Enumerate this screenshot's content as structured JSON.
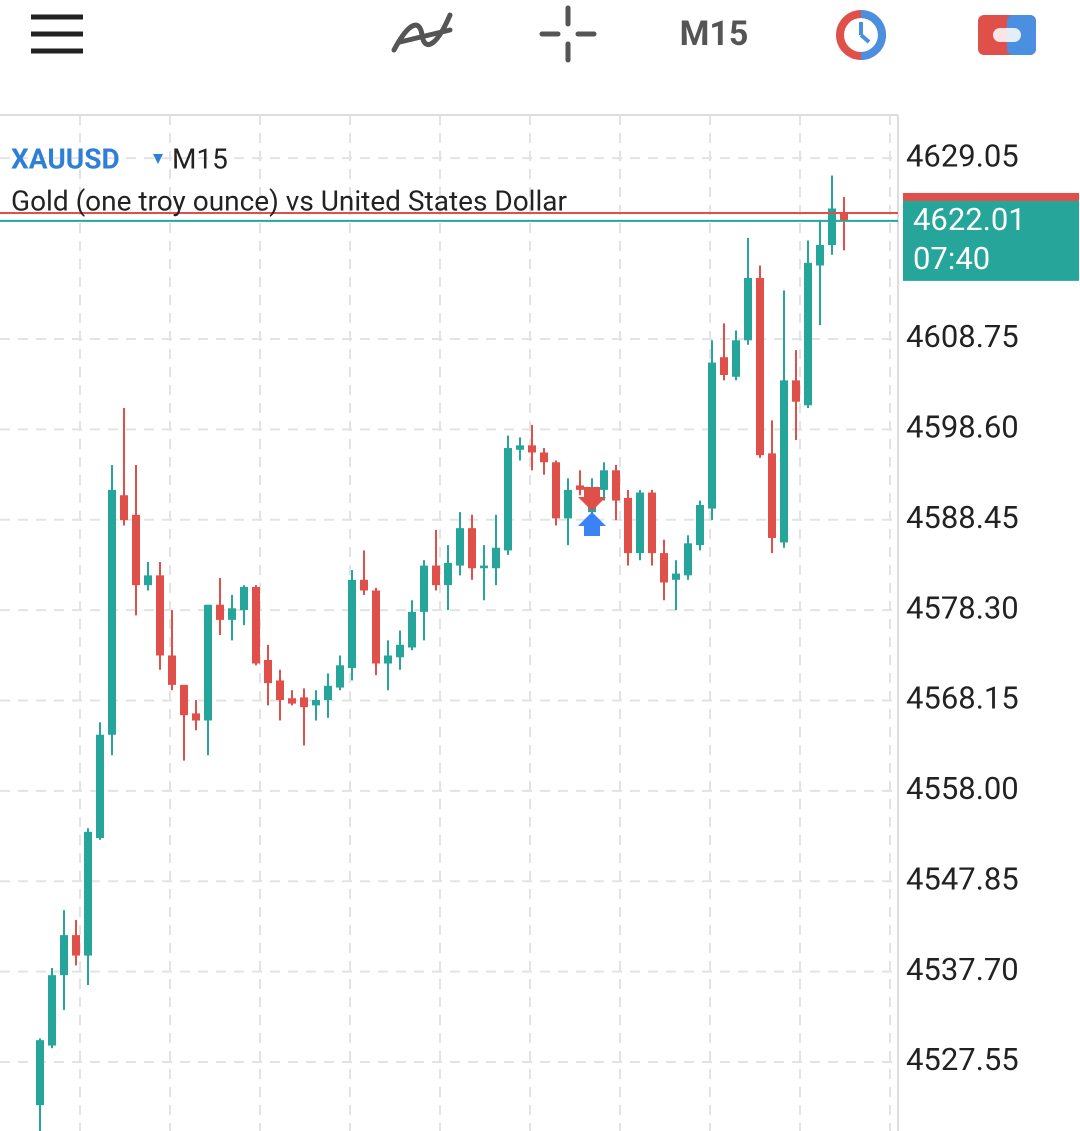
{
  "toolbar": {
    "timeframe": "M15"
  },
  "chart_data": {
    "type": "candlestick",
    "symbol": "XAUUSD",
    "timeframe": "M15",
    "title": "Gold (one troy ounce) vs United States Dollar",
    "up_color": "#26a69a",
    "down_color": "#e0504a",
    "open": [
      4522.7,
      4529.4,
      4537.3,
      4541.8,
      4539.5,
      4552.7,
      4564.3,
      4591.2,
      4589.0,
      4581.1,
      4582.2,
      4573.2,
      4569.9,
      4566.7,
      4565.9,
      4578.9,
      4577.2,
      4578.3,
      4580.9,
      4572.7,
      4570.4,
      4568.4,
      4568.5,
      4567.6,
      4568.2,
      4569.6,
      4571.8,
      4581.7,
      4580.5,
      4572.3,
      4573.0,
      4574.1,
      4578.1,
      4583.3,
      4581.1,
      4583.3,
      4587.5,
      4583.0,
      4583.0,
      4585.0,
      4596.3,
      4596.8,
      4596.0,
      4594.9,
      4588.6,
      4592.3,
      4589.3,
      4591.8,
      4594.0,
      4590.9,
      4584.7,
      4591.5,
      4584.7,
      4581.7,
      4582.2,
      4585.6,
      4589.7,
      4606.7,
      4604.5,
      4608.6,
      4615.6,
      4595.9,
      4585.9,
      4604.1,
      4601.3,
      4617.0,
      4619.3,
      4623.0
    ],
    "high": [
      4530.2,
      4538.1,
      4544.6,
      4543.5,
      4553.8,
      4565.7,
      4594.6,
      4601.0,
      4594.6,
      4583.7,
      4583.7,
      4578.3,
      4569.9,
      4568.2,
      4578.9,
      4581.9,
      4580.0,
      4581.1,
      4581.1,
      4574.4,
      4571.6,
      4569.3,
      4569.5,
      4569.3,
      4571.2,
      4573.2,
      4582.8,
      4585.0,
      4580.8,
      4574.9,
      4576.0,
      4579.4,
      4583.9,
      4587.3,
      4585.6,
      4589.3,
      4589.0,
      4585.6,
      4589.0,
      4597.9,
      4597.7,
      4599.1,
      4596.5,
      4595.1,
      4593.1,
      4594.0,
      4593.1,
      4594.9,
      4594.6,
      4591.8,
      4591.8,
      4591.8,
      4586.2,
      4583.9,
      4586.7,
      4590.6,
      4608.6,
      4610.5,
      4609.7,
      4620.1,
      4617.0,
      4599.6,
      4614.2,
      4607.5,
      4619.8,
      4622.1,
      4627.1,
      4624.7
    ],
    "low": [
      4519.8,
      4529.1,
      4533.4,
      4538.4,
      4536.2,
      4552.5,
      4562.0,
      4587.8,
      4577.7,
      4580.5,
      4571.6,
      4569.3,
      4561.4,
      4564.8,
      4562.0,
      4575.5,
      4574.9,
      4576.6,
      4572.1,
      4567.6,
      4565.9,
      4567.6,
      4563.1,
      4565.9,
      4566.2,
      4569.3,
      4570.4,
      4580.0,
      4571.0,
      4569.3,
      4571.6,
      4573.8,
      4574.9,
      4580.5,
      4578.3,
      4582.2,
      4581.7,
      4579.4,
      4581.1,
      4584.5,
      4595.1,
      4594.0,
      4593.5,
      4587.8,
      4585.6,
      4591.2,
      4587.3,
      4590.6,
      4588.4,
      4583.3,
      4583.9,
      4583.3,
      4579.4,
      4578.3,
      4581.7,
      4585.0,
      4588.4,
      4604.1,
      4604.1,
      4608.1,
      4595.4,
      4584.7,
      4585.3,
      4597.4,
      4601.0,
      4610.3,
      4618.2,
      4618.7
    ],
    "close": [
      4530.0,
      4537.3,
      4541.8,
      4539.5,
      4553.4,
      4564.3,
      4591.8,
      4588.4,
      4581.1,
      4582.2,
      4573.2,
      4569.9,
      4566.5,
      4565.9,
      4578.9,
      4577.2,
      4578.5,
      4580.9,
      4572.3,
      4570.1,
      4568.2,
      4567.8,
      4567.4,
      4568.2,
      4569.8,
      4572.1,
      4581.7,
      4580.5,
      4572.3,
      4573.2,
      4574.4,
      4578.1,
      4583.3,
      4581.1,
      4583.6,
      4587.5,
      4583.0,
      4583.3,
      4585.3,
      4596.5,
      4596.8,
      4596.0,
      4594.9,
      4588.6,
      4591.8,
      4591.8,
      4592.0,
      4594.0,
      4590.6,
      4584.7,
      4591.5,
      4584.7,
      4581.4,
      4582.4,
      4585.8,
      4590.1,
      4606.1,
      4604.7,
      4608.6,
      4615.6,
      4595.7,
      4586.4,
      4604.1,
      4601.7,
      4617.3,
      4619.3,
      4623.4,
      4622.01
    ],
    "current_price": 4622.01,
    "countdown": "07:40",
    "ask_price": 4622.9,
    "ylim": [
      4519.8,
      4633.9
    ],
    "yticks": [
      4629.05,
      4608.75,
      {
        "value": 4598.6,
        "label": "4598.60"
      },
      4588.45,
      {
        "value": 4578.3,
        "label": "4578.30"
      },
      4568.15,
      {
        "value": 4558.0,
        "label": "4558.00"
      },
      4547.85,
      {
        "value": 4537.7,
        "label": "4537.70"
      },
      4527.55
    ],
    "grid": true
  }
}
